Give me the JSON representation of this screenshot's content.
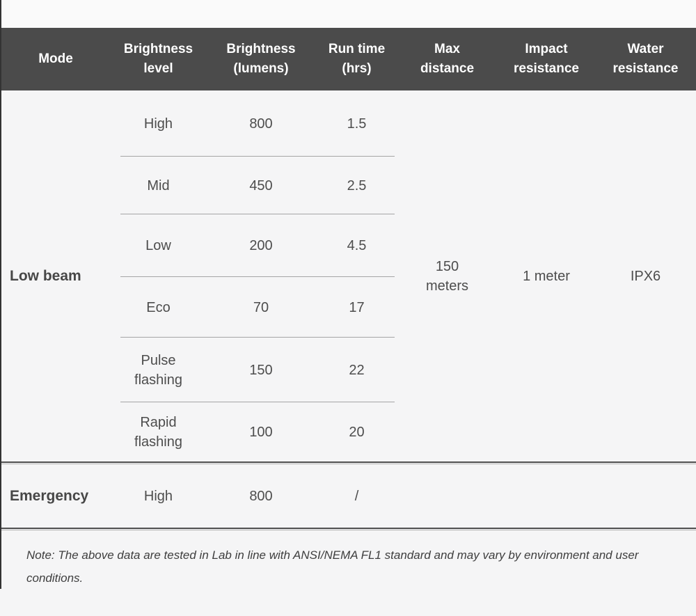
{
  "chart_data": {
    "type": "table",
    "columns": [
      "Mode",
      "Brightness level",
      "Brightness (lumens)",
      "Run time (hrs)",
      "Max distance",
      "Impact resistance",
      "Water resistance"
    ],
    "low_beam": {
      "mode": "Low beam",
      "rows": [
        {
          "level": "High",
          "lumens": "800",
          "runtime": "1.5"
        },
        {
          "level": "Mid",
          "lumens": "450",
          "runtime": "2.5"
        },
        {
          "level": "Low",
          "lumens": "200",
          "runtime": "4.5"
        },
        {
          "level": "Eco",
          "lumens": "70",
          "runtime": "17"
        },
        {
          "level": "Pulse flashing",
          "lumens": "150",
          "runtime": "22"
        },
        {
          "level": "Rapid flashing",
          "lumens": "100",
          "runtime": "20"
        }
      ],
      "max_distance": "150 meters",
      "impact_resistance": "1 meter",
      "water_resistance": "IPX6"
    },
    "emergency": {
      "mode": "Emergency",
      "level": "High",
      "lumens": "800",
      "runtime": "/",
      "max_distance": "",
      "impact_resistance": "",
      "water_resistance": ""
    },
    "note": "Note: The above data are tested in Lab in line with ANSI/NEMA FL1 standard and may vary by environment and user conditions."
  },
  "colors": {
    "page-bg": "#f5f5f6",
    "top-bg": "#fafafa",
    "header-bg": "#4b4b4b",
    "header-text": "#ffffff",
    "body-text": "#4d4d4d",
    "mode-text": "#474747",
    "sep": "#a5a5a5",
    "divider-dark": "#4f4f4f",
    "divider-light": "#b3b3b3",
    "note-text": "#3e3e3e",
    "edge": "#333333"
  }
}
